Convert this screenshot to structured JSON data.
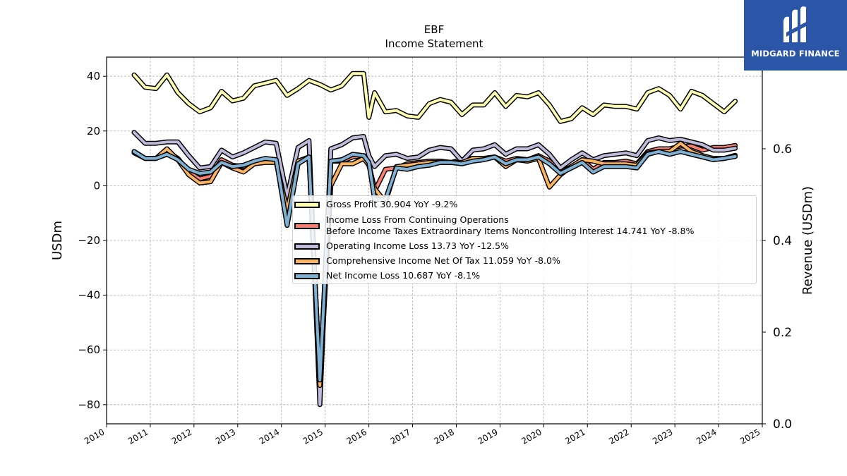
{
  "brand": {
    "name": "MIDGARD FINANCE",
    "logo_icon": "midgard-logo-icon",
    "color": "#2b56a8"
  },
  "chart_data": {
    "type": "line",
    "title": "EBF",
    "subtitle": "Income Statement",
    "ylabel": "USDm",
    "ylabel_right": "Revenue (USDm)",
    "xlim": [
      2010,
      2025
    ],
    "ylim": [
      -87,
      47
    ],
    "ylim_right": [
      0.0,
      0.8
    ],
    "x_ticks": [
      "2010",
      "2011",
      "2012",
      "2013",
      "2014",
      "2015",
      "2016",
      "2017",
      "2018",
      "2019",
      "2020",
      "2021",
      "2022",
      "2023",
      "2024",
      "2025"
    ],
    "y_ticks": [
      "40",
      "20",
      "0",
      "−20",
      "−40",
      "−60",
      "−80"
    ],
    "y_ticks_right": [
      "0.8",
      "0.6",
      "0.4",
      "0.2",
      "0.0"
    ],
    "grid": true,
    "legend_position": "center-right",
    "x": [
      2010.63,
      2010.88,
      2011.13,
      2011.38,
      2011.63,
      2011.88,
      2012.13,
      2012.38,
      2012.63,
      2012.88,
      2013.13,
      2013.38,
      2013.63,
      2013.88,
      2014.13,
      2014.38,
      2014.63,
      2014.88,
      2015.13,
      2015.38,
      2015.63,
      2015.88,
      2016.0,
      2016.13,
      2016.38,
      2016.63,
      2016.88,
      2017.13,
      2017.38,
      2017.63,
      2017.88,
      2018.13,
      2018.38,
      2018.63,
      2018.88,
      2019.13,
      2019.38,
      2019.63,
      2019.88,
      2020.13,
      2020.38,
      2020.63,
      2020.88,
      2021.13,
      2021.38,
      2021.63,
      2021.88,
      2022.13,
      2022.38,
      2022.63,
      2022.88,
      2023.13,
      2023.38,
      2023.63,
      2023.88,
      2024.13,
      2024.38
    ],
    "series": [
      {
        "name": "Gross Profit",
        "label": "Gross Profit  30.904 YoY -9.2%",
        "color": "#ffffb3",
        "values": [
          40.5,
          36,
          35.5,
          40.5,
          34,
          30,
          27,
          28.5,
          34.5,
          31,
          32,
          36.5,
          37.5,
          38.5,
          33,
          35.5,
          38.5,
          37,
          35,
          36.5,
          41,
          41,
          25,
          34,
          27,
          27.5,
          25.5,
          25,
          30,
          31.5,
          30.5,
          26,
          29.5,
          29.5,
          34,
          29,
          33,
          32.5,
          34,
          29.5,
          23.5,
          24.5,
          28.5,
          26,
          29.5,
          29,
          29,
          28,
          34,
          35.5,
          33,
          28,
          34.5,
          33,
          30,
          27,
          30.9
        ]
      },
      {
        "name": "Income Loss From Continuing Operations Before Income Taxes Extraordinary Items Noncontrolling Interest",
        "label1": "Income Loss From Continuing Operations",
        "label2": "Before Income Taxes Extraordinary Items Noncontrolling Interest  14.741 YoY -8.8%",
        "color": "#fb8072",
        "values": [
          12.5,
          10,
          10,
          12.5,
          10,
          5,
          2.5,
          3.5,
          9.5,
          7.5,
          7,
          8.5,
          9,
          9.5,
          -4,
          9,
          10.5,
          -71,
          9,
          9,
          10.5,
          11,
          8,
          -2,
          6,
          6.5,
          8,
          8.5,
          9,
          9,
          8.5,
          9.5,
          10,
          10,
          10.5,
          9,
          10,
          9.5,
          11,
          9,
          5,
          7,
          9.5,
          6,
          8.5,
          8.5,
          9,
          8,
          12.5,
          13.5,
          13.5,
          14.5,
          14.5,
          13,
          14,
          14,
          14.7
        ]
      },
      {
        "name": "Operating Income Loss",
        "label": "Operating Income Loss  13.73 YoY -12.5%",
        "color": "#bebada",
        "values": [
          19.5,
          15.5,
          15.5,
          16,
          16,
          11,
          6.5,
          7,
          13,
          10.5,
          12,
          14,
          16,
          15.5,
          -4,
          14,
          16.5,
          -80,
          13.5,
          15,
          17.5,
          18,
          11,
          7,
          11,
          11.5,
          10,
          10.5,
          13,
          14,
          13.5,
          9,
          13,
          13.5,
          15,
          11.5,
          13.5,
          13.5,
          15,
          11.5,
          6.5,
          9.5,
          12,
          9.5,
          11,
          11.5,
          12,
          11,
          16.5,
          17.5,
          16.5,
          17,
          16,
          15,
          13,
          13,
          13.7
        ]
      },
      {
        "name": "Comprehensive Income Net Of Tax",
        "label": "Comprehensive Income Net Of Tax  11.059 YoY -8.0%",
        "color": "#fdb462",
        "values": [
          12,
          10,
          10,
          13.5,
          9.5,
          4,
          1,
          1.5,
          8.5,
          6.5,
          5,
          8,
          8.5,
          8.5,
          -9,
          9,
          10.5,
          -73,
          0,
          8,
          8,
          10,
          7.5,
          -1,
          -6,
          7,
          7.5,
          8,
          8.5,
          8.5,
          8.5,
          8.5,
          10,
          10,
          10.5,
          7,
          9.5,
          9,
          10,
          -0.5,
          4,
          7,
          9.5,
          9,
          8,
          8,
          8,
          7.5,
          12,
          12.5,
          12.5,
          15.5,
          12.5,
          11,
          10,
          10,
          11.1
        ]
      },
      {
        "name": "Net Income Loss",
        "label": "Net Income Loss  10.687 YoY -8.1%",
        "color": "#80b1d3",
        "values": [
          12.5,
          10,
          10,
          11.5,
          9.5,
          6,
          4.5,
          5,
          8.5,
          7,
          7.5,
          9,
          10,
          9.5,
          -14.5,
          8,
          10.5,
          -71,
          9,
          9.5,
          11.5,
          11,
          8.5,
          -5,
          -5,
          6.5,
          6,
          7,
          7.5,
          8.5,
          8.5,
          8,
          9,
          9.5,
          10.5,
          8,
          9.5,
          9.5,
          10.5,
          8,
          4.5,
          6.5,
          8.5,
          5,
          7,
          7,
          7,
          6.5,
          11.5,
          12.5,
          11.5,
          12.5,
          11.5,
          10.5,
          9.5,
          10,
          10.7
        ]
      }
    ]
  }
}
